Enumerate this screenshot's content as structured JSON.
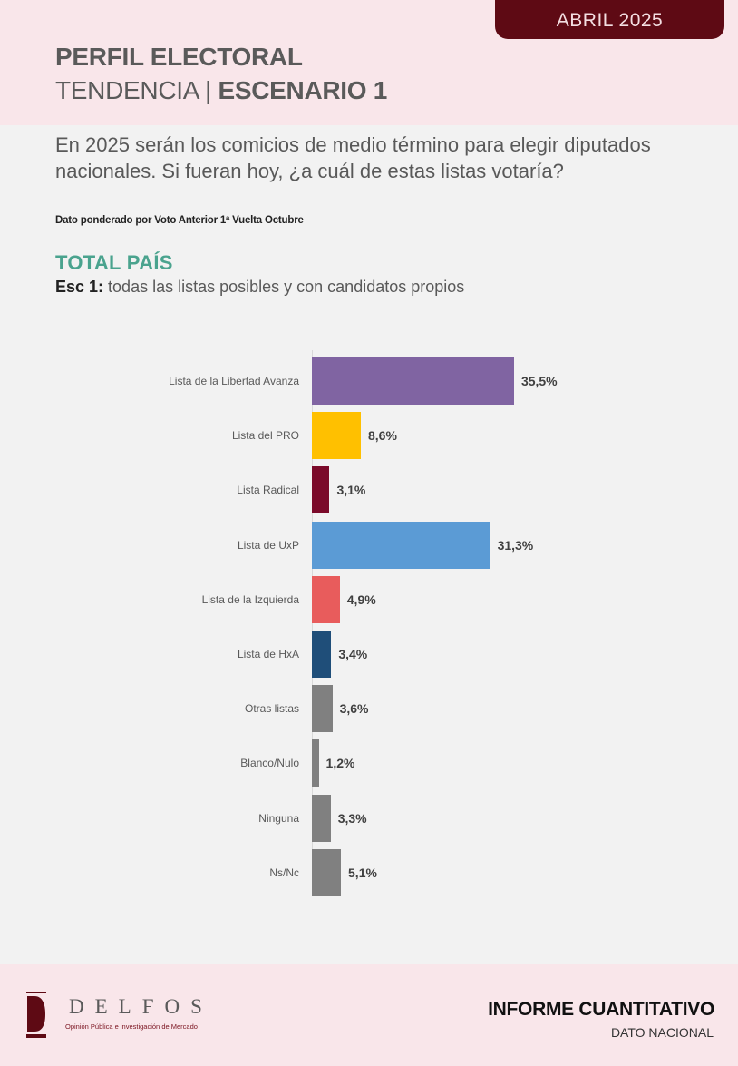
{
  "header": {
    "date_badge": "ABRIL 2025",
    "title_line1": "PERFIL ELECTORAL",
    "title_line2_light": "TENDENCIA | ",
    "title_line2_bold": "ESCENARIO 1"
  },
  "question": {
    "text": "En 2025 serán los comicios de medio término para elegir diputados nacionales. Si fueran hoy, ¿a cuál de estas listas votaría?",
    "note": "Dato ponderado por Voto Anterior 1ª Vuelta Octubre"
  },
  "section": {
    "title": "TOTAL PAÍS",
    "sub_bold": "Esc 1:",
    "sub_text": " todas las listas posibles y con candidatos propios"
  },
  "chart_data": {
    "type": "bar",
    "orientation": "horizontal",
    "title": "TOTAL PAÍS",
    "subtitle": "Esc 1: todas las listas posibles y con candidatos propios",
    "xlabel": "",
    "ylabel": "",
    "unit": "%",
    "grid": false,
    "legend": "none",
    "categories": [
      "Lista de la Libertad Avanza",
      "Lista del PRO",
      "Lista Radical",
      "Lista de UxP",
      "Lista de la Izquierda",
      "Lista de HxA",
      "Otras listas",
      "Blanco/Nulo",
      "Ninguna",
      "Ns/Nc"
    ],
    "values": [
      35.5,
      8.6,
      3.1,
      31.3,
      4.9,
      3.4,
      3.6,
      1.2,
      3.3,
      5.1
    ],
    "value_labels": [
      "35,5%",
      "8,6%",
      "3,1%",
      "31,3%",
      "4,9%",
      "3,4%",
      "3,6%",
      "1,2%",
      "3,3%",
      "5,1%"
    ],
    "colors": [
      "#8064a2",
      "#ffc000",
      "#7b0a2a",
      "#5b9bd5",
      "#e85c5c",
      "#1f4e79",
      "#808080",
      "#808080",
      "#808080",
      "#808080"
    ]
  },
  "footer": {
    "logo_name": "DELFOS",
    "logo_tagline": "Opinión Pública e investigación de Mercado",
    "report_title": "INFORME CUANTITATIVO",
    "report_sub": "DATO NACIONAL"
  },
  "colors": {
    "header_bg": "#f9e6ea",
    "badge_bg": "#5e0a14",
    "accent_green": "#4aa38e",
    "page_bg": "#f2f2f2"
  }
}
